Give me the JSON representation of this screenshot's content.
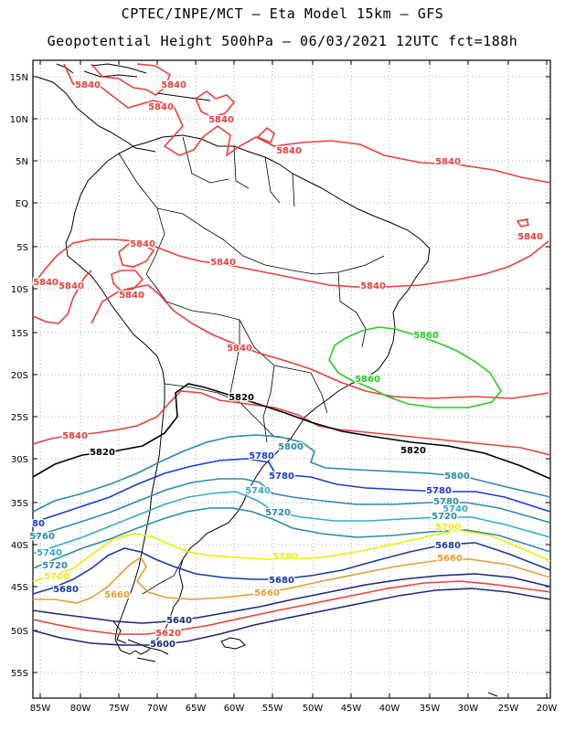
{
  "header": {
    "title_line1": "CPTEC/INPE/MCT –  Eta Model 15km – GFS",
    "title_line2": "Geopotential Height 500hPa – 06/03/2021 12UTC fct=188h"
  },
  "axes": {
    "lat_labels": [
      "15N",
      "10N",
      "5N",
      "EQ",
      "5S",
      "10S",
      "15S",
      "20S",
      "25S",
      "30S",
      "35S",
      "40S",
      "45S",
      "50S",
      "55S"
    ],
    "lon_labels": [
      "85W",
      "80W",
      "75W",
      "70W",
      "65W",
      "60W",
      "55W",
      "50W",
      "45W",
      "40W",
      "35W",
      "30W",
      "25W",
      "20W"
    ]
  },
  "colors": {
    "c5840": "#e8403c",
    "c5860": "#22cc22",
    "c5820": "#000000",
    "c5800": "#2a8aa8",
    "c5780": "#1a3adc",
    "c5760": "#2a8aa8",
    "c5740": "#33aacc",
    "c5720": "#2a8aa8",
    "c5700": "#eeee00",
    "c5680": "#1a3aa8",
    "c5660": "#e0a030",
    "c5640": "#1a2a7a",
    "c5620": "#e8403c",
    "c5600": "#1a2a7a"
  },
  "contour_labels": [
    {
      "text": "5840",
      "color": "c5840"
    },
    {
      "text": "5840",
      "color": "c5840"
    },
    {
      "text": "5840",
      "color": "c5840"
    },
    {
      "text": "5840",
      "color": "c5840"
    },
    {
      "text": "5840",
      "color": "c5840"
    },
    {
      "text": "5840",
      "color": "c5840"
    },
    {
      "text": "5840",
      "color": "c5840"
    },
    {
      "text": "5840",
      "color": "c5840"
    },
    {
      "text": "5840",
      "color": "c5840"
    },
    {
      "text": "5840",
      "color": "c5840"
    },
    {
      "text": "5840",
      "color": "c5840"
    },
    {
      "text": "5840",
      "color": "c5840"
    },
    {
      "text": "5840",
      "color": "c5840"
    },
    {
      "text": "5840",
      "color": "c5840"
    },
    {
      "text": "5840",
      "color": "c5840"
    },
    {
      "text": "5860",
      "color": "c5860"
    },
    {
      "text": "5860",
      "color": "c5860"
    },
    {
      "text": "5820",
      "color": "c5820"
    },
    {
      "text": "5820",
      "color": "c5820"
    },
    {
      "text": "5820",
      "color": "c5820"
    },
    {
      "text": "5800",
      "color": "c5800"
    },
    {
      "text": "5800",
      "color": "c5800"
    },
    {
      "text": "5780",
      "color": "c5780"
    },
    {
      "text": "5780",
      "color": "c5780"
    },
    {
      "text": "5780",
      "color": "c5780"
    },
    {
      "text": "5780",
      "color": "c5760"
    },
    {
      "text": "5760",
      "color": "c5760"
    },
    {
      "text": "5740",
      "color": "c5740"
    },
    {
      "text": "5740",
      "color": "c5740"
    },
    {
      "text": "5740",
      "color": "c5740"
    },
    {
      "text": "5720",
      "color": "c5720"
    },
    {
      "text": "5720",
      "color": "c5720"
    },
    {
      "text": "5720",
      "color": "c5720"
    },
    {
      "text": "5700",
      "color": "c5700"
    },
    {
      "text": "5700",
      "color": "c5700"
    },
    {
      "text": "5700",
      "color": "c5700"
    },
    {
      "text": "5680",
      "color": "c5680"
    },
    {
      "text": "5680",
      "color": "c5680"
    },
    {
      "text": "5680",
      "color": "c5680"
    },
    {
      "text": "5660",
      "color": "c5660"
    },
    {
      "text": "5660",
      "color": "c5660"
    },
    {
      "text": "5660",
      "color": "c5660"
    },
    {
      "text": "5640",
      "color": "c5640"
    },
    {
      "text": "5620",
      "color": "c5620"
    },
    {
      "text": "5600",
      "color": "c5600"
    },
    {
      "text": "80",
      "color": "c5780"
    }
  ]
}
